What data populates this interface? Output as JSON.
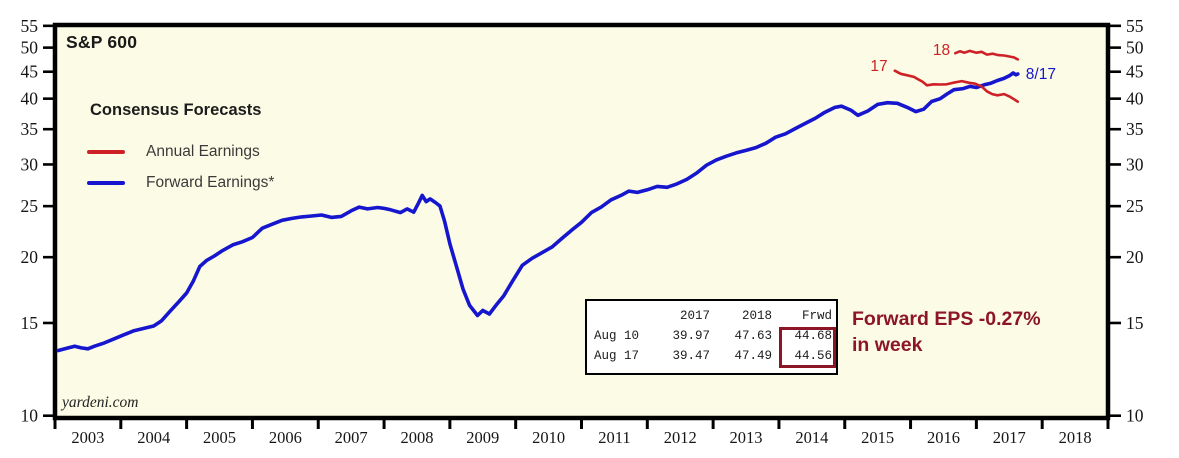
{
  "title": "S&P 600",
  "watermark": "yardeni.com",
  "colors": {
    "plot_background": "#FCFCE6",
    "axis": "#000000",
    "annual_red": "#CE2127",
    "forward_blue": "#1616CE",
    "callout_maroon": "#8C1626"
  },
  "legend": {
    "title": "Consensus Forecasts",
    "items": [
      {
        "label": "Annual Earnings",
        "color": "#CE2127"
      },
      {
        "label": "Forward Earnings*",
        "color": "#1616CE"
      }
    ]
  },
  "eps_table": {
    "headers": [
      "",
      "2017",
      "2018",
      "Frwd"
    ],
    "rows": [
      {
        "label": "Aug 10",
        "c1": "39.97",
        "c2": "47.63",
        "c3": "44.68"
      },
      {
        "label": "Aug 17",
        "c1": "39.47",
        "c2": "47.49",
        "c3": "44.56"
      }
    ],
    "highlight_color": "#8C1626"
  },
  "callout": {
    "line1": "Forward EPS -0.27%",
    "line2": "in week",
    "color": "#8C1626"
  },
  "chart_data": {
    "type": "line",
    "title": "S&P 600 Consensus Forecasts",
    "x_axis": {
      "min": 2003,
      "max": 2019,
      "tick_years": [
        2003,
        2004,
        2005,
        2006,
        2007,
        2008,
        2009,
        2010,
        2011,
        2012,
        2013,
        2014,
        2015,
        2016,
        2017,
        2018,
        2019
      ],
      "labels": [
        "2003",
        "2004",
        "2005",
        "2006",
        "2007",
        "2008",
        "2009",
        "2010",
        "2011",
        "2012",
        "2013",
        "2014",
        "2015",
        "2016",
        "2017",
        "2018"
      ]
    },
    "y_axis": {
      "scale": "log",
      "min": 9.9,
      "max": 55.2,
      "ticks": [
        10,
        15,
        20,
        25,
        30,
        35,
        40,
        45,
        50,
        55
      ],
      "sides": "both",
      "grid": false
    },
    "series": [
      {
        "name": "Forward Earnings",
        "color": "#1616CE",
        "end_value": 44.56,
        "points": [
          [
            2003.05,
            13.3
          ],
          [
            2003.2,
            13.45
          ],
          [
            2003.3,
            13.55
          ],
          [
            2003.4,
            13.45
          ],
          [
            2003.5,
            13.4
          ],
          [
            2003.6,
            13.55
          ],
          [
            2003.75,
            13.75
          ],
          [
            2003.9,
            14.0
          ],
          [
            2004.05,
            14.25
          ],
          [
            2004.2,
            14.5
          ],
          [
            2004.35,
            14.65
          ],
          [
            2004.5,
            14.8
          ],
          [
            2004.62,
            15.15
          ],
          [
            2004.75,
            15.8
          ],
          [
            2004.88,
            16.45
          ],
          [
            2005.0,
            17.1
          ],
          [
            2005.1,
            18.0
          ],
          [
            2005.2,
            19.2
          ],
          [
            2005.3,
            19.7
          ],
          [
            2005.42,
            20.1
          ],
          [
            2005.55,
            20.6
          ],
          [
            2005.7,
            21.1
          ],
          [
            2005.85,
            21.4
          ],
          [
            2006.0,
            21.8
          ],
          [
            2006.15,
            22.7
          ],
          [
            2006.3,
            23.1
          ],
          [
            2006.45,
            23.5
          ],
          [
            2006.6,
            23.7
          ],
          [
            2006.75,
            23.85
          ],
          [
            2006.9,
            23.95
          ],
          [
            2007.05,
            24.05
          ],
          [
            2007.2,
            23.8
          ],
          [
            2007.35,
            23.9
          ],
          [
            2007.5,
            24.5
          ],
          [
            2007.62,
            24.9
          ],
          [
            2007.75,
            24.7
          ],
          [
            2007.9,
            24.85
          ],
          [
            2008.0,
            24.75
          ],
          [
            2008.1,
            24.6
          ],
          [
            2008.25,
            24.3
          ],
          [
            2008.35,
            24.7
          ],
          [
            2008.45,
            24.35
          ],
          [
            2008.52,
            25.3
          ],
          [
            2008.58,
            26.2
          ],
          [
            2008.64,
            25.5
          ],
          [
            2008.7,
            25.8
          ],
          [
            2008.78,
            25.4
          ],
          [
            2008.85,
            25.0
          ],
          [
            2008.92,
            23.4
          ],
          [
            2009.0,
            21.2
          ],
          [
            2009.1,
            19.2
          ],
          [
            2009.2,
            17.4
          ],
          [
            2009.3,
            16.2
          ],
          [
            2009.42,
            15.5
          ],
          [
            2009.5,
            15.85
          ],
          [
            2009.6,
            15.6
          ],
          [
            2009.7,
            16.2
          ],
          [
            2009.82,
            16.9
          ],
          [
            2009.95,
            18.0
          ],
          [
            2010.1,
            19.3
          ],
          [
            2010.25,
            19.9
          ],
          [
            2010.4,
            20.4
          ],
          [
            2010.55,
            20.9
          ],
          [
            2010.7,
            21.7
          ],
          [
            2010.85,
            22.5
          ],
          [
            2011.0,
            23.3
          ],
          [
            2011.15,
            24.3
          ],
          [
            2011.3,
            24.9
          ],
          [
            2011.45,
            25.7
          ],
          [
            2011.6,
            26.2
          ],
          [
            2011.72,
            26.7
          ],
          [
            2011.85,
            26.55
          ],
          [
            2012.0,
            26.85
          ],
          [
            2012.15,
            27.25
          ],
          [
            2012.3,
            27.15
          ],
          [
            2012.45,
            27.55
          ],
          [
            2012.6,
            28.1
          ],
          [
            2012.75,
            28.9
          ],
          [
            2012.9,
            29.9
          ],
          [
            2013.05,
            30.6
          ],
          [
            2013.2,
            31.1
          ],
          [
            2013.35,
            31.55
          ],
          [
            2013.5,
            31.9
          ],
          [
            2013.65,
            32.3
          ],
          [
            2013.8,
            32.9
          ],
          [
            2013.95,
            33.8
          ],
          [
            2014.1,
            34.3
          ],
          [
            2014.25,
            35.1
          ],
          [
            2014.4,
            35.9
          ],
          [
            2014.55,
            36.7
          ],
          [
            2014.7,
            37.7
          ],
          [
            2014.85,
            38.5
          ],
          [
            2014.95,
            38.7
          ],
          [
            2015.1,
            38.0
          ],
          [
            2015.2,
            37.2
          ],
          [
            2015.35,
            37.9
          ],
          [
            2015.5,
            39.0
          ],
          [
            2015.65,
            39.3
          ],
          [
            2015.8,
            39.2
          ],
          [
            2015.95,
            38.5
          ],
          [
            2016.08,
            37.8
          ],
          [
            2016.2,
            38.2
          ],
          [
            2016.32,
            39.5
          ],
          [
            2016.45,
            40.0
          ],
          [
            2016.55,
            40.8
          ],
          [
            2016.66,
            41.6
          ],
          [
            2016.8,
            41.8
          ],
          [
            2016.9,
            42.2
          ],
          [
            2017.0,
            42.0
          ],
          [
            2017.12,
            42.5
          ],
          [
            2017.22,
            42.8
          ],
          [
            2017.32,
            43.3
          ],
          [
            2017.42,
            43.7
          ],
          [
            2017.5,
            44.2
          ],
          [
            2017.56,
            44.75
          ],
          [
            2017.6,
            44.4
          ],
          [
            2017.63,
            44.56
          ]
        ]
      },
      {
        "name": "Annual Earnings 2017 estimate",
        "color": "#CE2127",
        "end_value": 39.47,
        "points": [
          [
            2015.76,
            45.2
          ],
          [
            2015.85,
            44.6
          ],
          [
            2015.95,
            44.3
          ],
          [
            2016.05,
            44.0
          ],
          [
            2016.12,
            43.5
          ],
          [
            2016.18,
            43.1
          ],
          [
            2016.25,
            42.4
          ],
          [
            2016.35,
            42.6
          ],
          [
            2016.45,
            42.55
          ],
          [
            2016.55,
            42.6
          ],
          [
            2016.65,
            42.9
          ],
          [
            2016.78,
            43.2
          ],
          [
            2016.88,
            42.9
          ],
          [
            2016.98,
            42.7
          ],
          [
            2017.08,
            42.2
          ],
          [
            2017.16,
            41.3
          ],
          [
            2017.24,
            40.8
          ],
          [
            2017.32,
            40.6
          ],
          [
            2017.42,
            40.8
          ],
          [
            2017.5,
            40.4
          ],
          [
            2017.56,
            40.0
          ],
          [
            2017.63,
            39.47
          ]
        ]
      },
      {
        "name": "Annual Earnings 2018 estimate",
        "color": "#CE2127",
        "end_value": 47.49,
        "points": [
          [
            2016.68,
            48.8
          ],
          [
            2016.75,
            49.2
          ],
          [
            2016.82,
            48.9
          ],
          [
            2016.9,
            49.3
          ],
          [
            2017.0,
            48.9
          ],
          [
            2017.08,
            49.1
          ],
          [
            2017.16,
            48.5
          ],
          [
            2017.25,
            48.7
          ],
          [
            2017.33,
            48.4
          ],
          [
            2017.42,
            48.3
          ],
          [
            2017.5,
            48.1
          ],
          [
            2017.57,
            47.9
          ],
          [
            2017.63,
            47.49
          ]
        ]
      }
    ],
    "annotations": [
      {
        "text": "17",
        "t": 2015.52,
        "v": 45.9,
        "color": "#CE2127"
      },
      {
        "text": "18",
        "t": 2016.47,
        "v": 49.3,
        "color": "#CE2127"
      },
      {
        "text": "8/17",
        "t": 2017.98,
        "v": 44.4,
        "color": "#1616CE"
      }
    ],
    "legend_position": "top-left"
  }
}
